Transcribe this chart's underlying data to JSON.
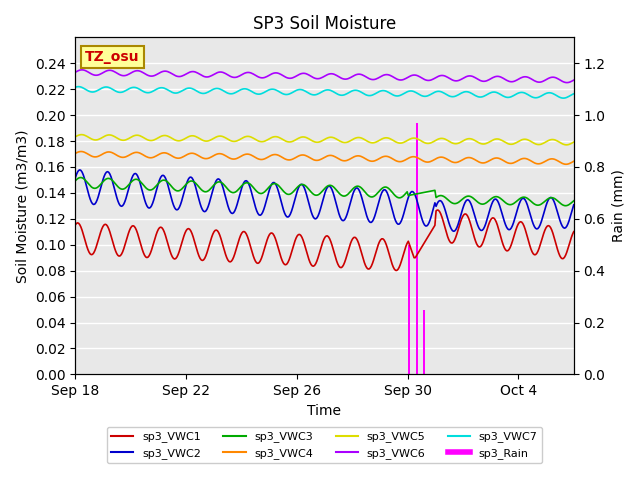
{
  "title": "SP3 Soil Moisture",
  "xlabel": "Time",
  "ylabel_left": "Soil Moisture (m3/m3)",
  "ylabel_right": "Rain (mm)",
  "xlim_days": [
    0,
    18
  ],
  "ylim_left": [
    0.0,
    0.26
  ],
  "ylim_right": [
    0.0,
    1.3
  ],
  "x_ticks_labels": [
    "Sep 18",
    "Sep 22",
    "Sep 26",
    "Sep 30",
    "Oct 4"
  ],
  "x_ticks_days": [
    0,
    4,
    8,
    12,
    16
  ],
  "colors": {
    "sp3_VWC1": "#cc0000",
    "sp3_VWC2": "#0000cc",
    "sp3_VWC3": "#00aa00",
    "sp3_VWC4": "#ff8800",
    "sp3_VWC5": "#dddd00",
    "sp3_VWC6": "#aa00ff",
    "sp3_VWC7": "#00dddd",
    "sp3_Rain": "#ff00ff"
  },
  "bg_color": "#e8e8e8",
  "grid_color": "white",
  "tz_label": "TZ_osu",
  "tz_bg": "#ffff99",
  "tz_border": "#aa8800"
}
